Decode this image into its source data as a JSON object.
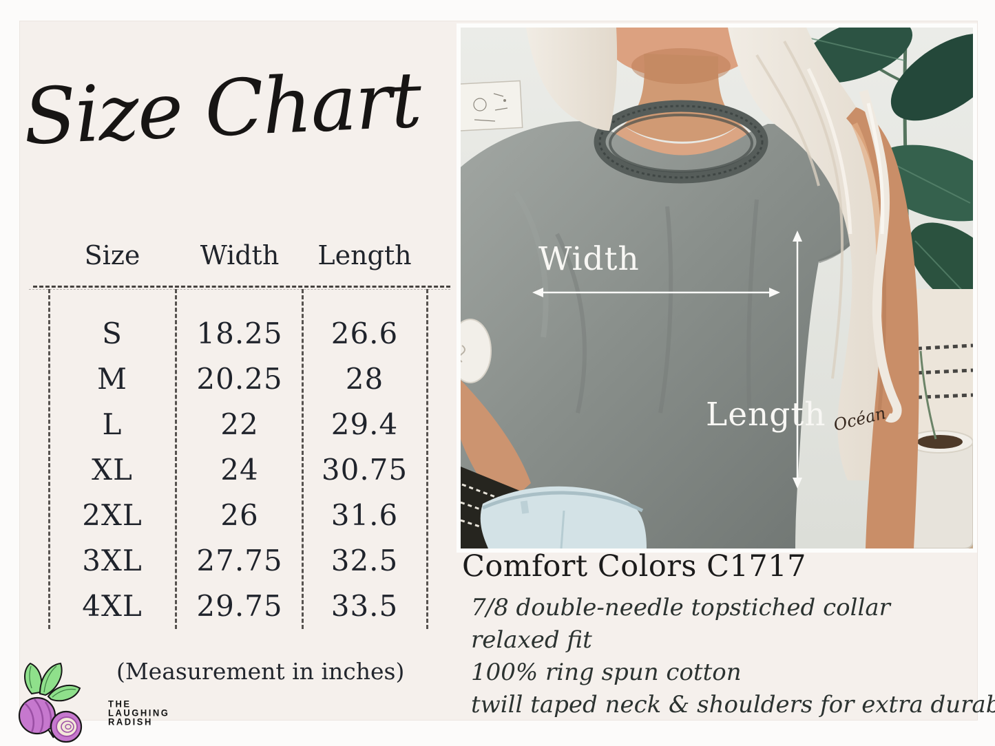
{
  "page": {
    "title_script": "Size Chart"
  },
  "size_table": {
    "headers": [
      "Size",
      "Width",
      "Length"
    ],
    "rows": [
      [
        "S",
        "18.25",
        "26.6"
      ],
      [
        "M",
        "20.25",
        "28"
      ],
      [
        "L",
        "22",
        "29.4"
      ],
      [
        "XL",
        "24",
        "30.75"
      ],
      [
        "2XL",
        "26",
        "31.6"
      ],
      [
        "3XL",
        "27.75",
        "32.5"
      ],
      [
        "4XL",
        "29.75",
        "33.5"
      ]
    ],
    "footnote": "(Measurement in inches)",
    "units": "inches"
  },
  "photo": {
    "width_label": "Width",
    "length_label": "Length",
    "tattoo_text": "Océan",
    "subject": "model wearing grey comfort-colors tee with width and length measurement arrows"
  },
  "product": {
    "name": "Comfort Colors C1717",
    "features": [
      "7/8 double-needle topstiched collar",
      "relaxed fit",
      "100% ring spun cotton",
      "twill taped neck & shoulders for extra durability"
    ]
  },
  "brand": {
    "lines": [
      "THE",
      "LAUGHING",
      "RADISH"
    ]
  },
  "colors": {
    "card_bg": "#f5f0ec",
    "outer_bg": "#fcfbfa",
    "table_line": "#2f2b28",
    "tee_grey": "#8a908c",
    "plant_green": "#2f5846",
    "radish_purple": "#c678ce",
    "leaf_green": "#8fe08b",
    "arrow_white": "#fafaf8"
  }
}
